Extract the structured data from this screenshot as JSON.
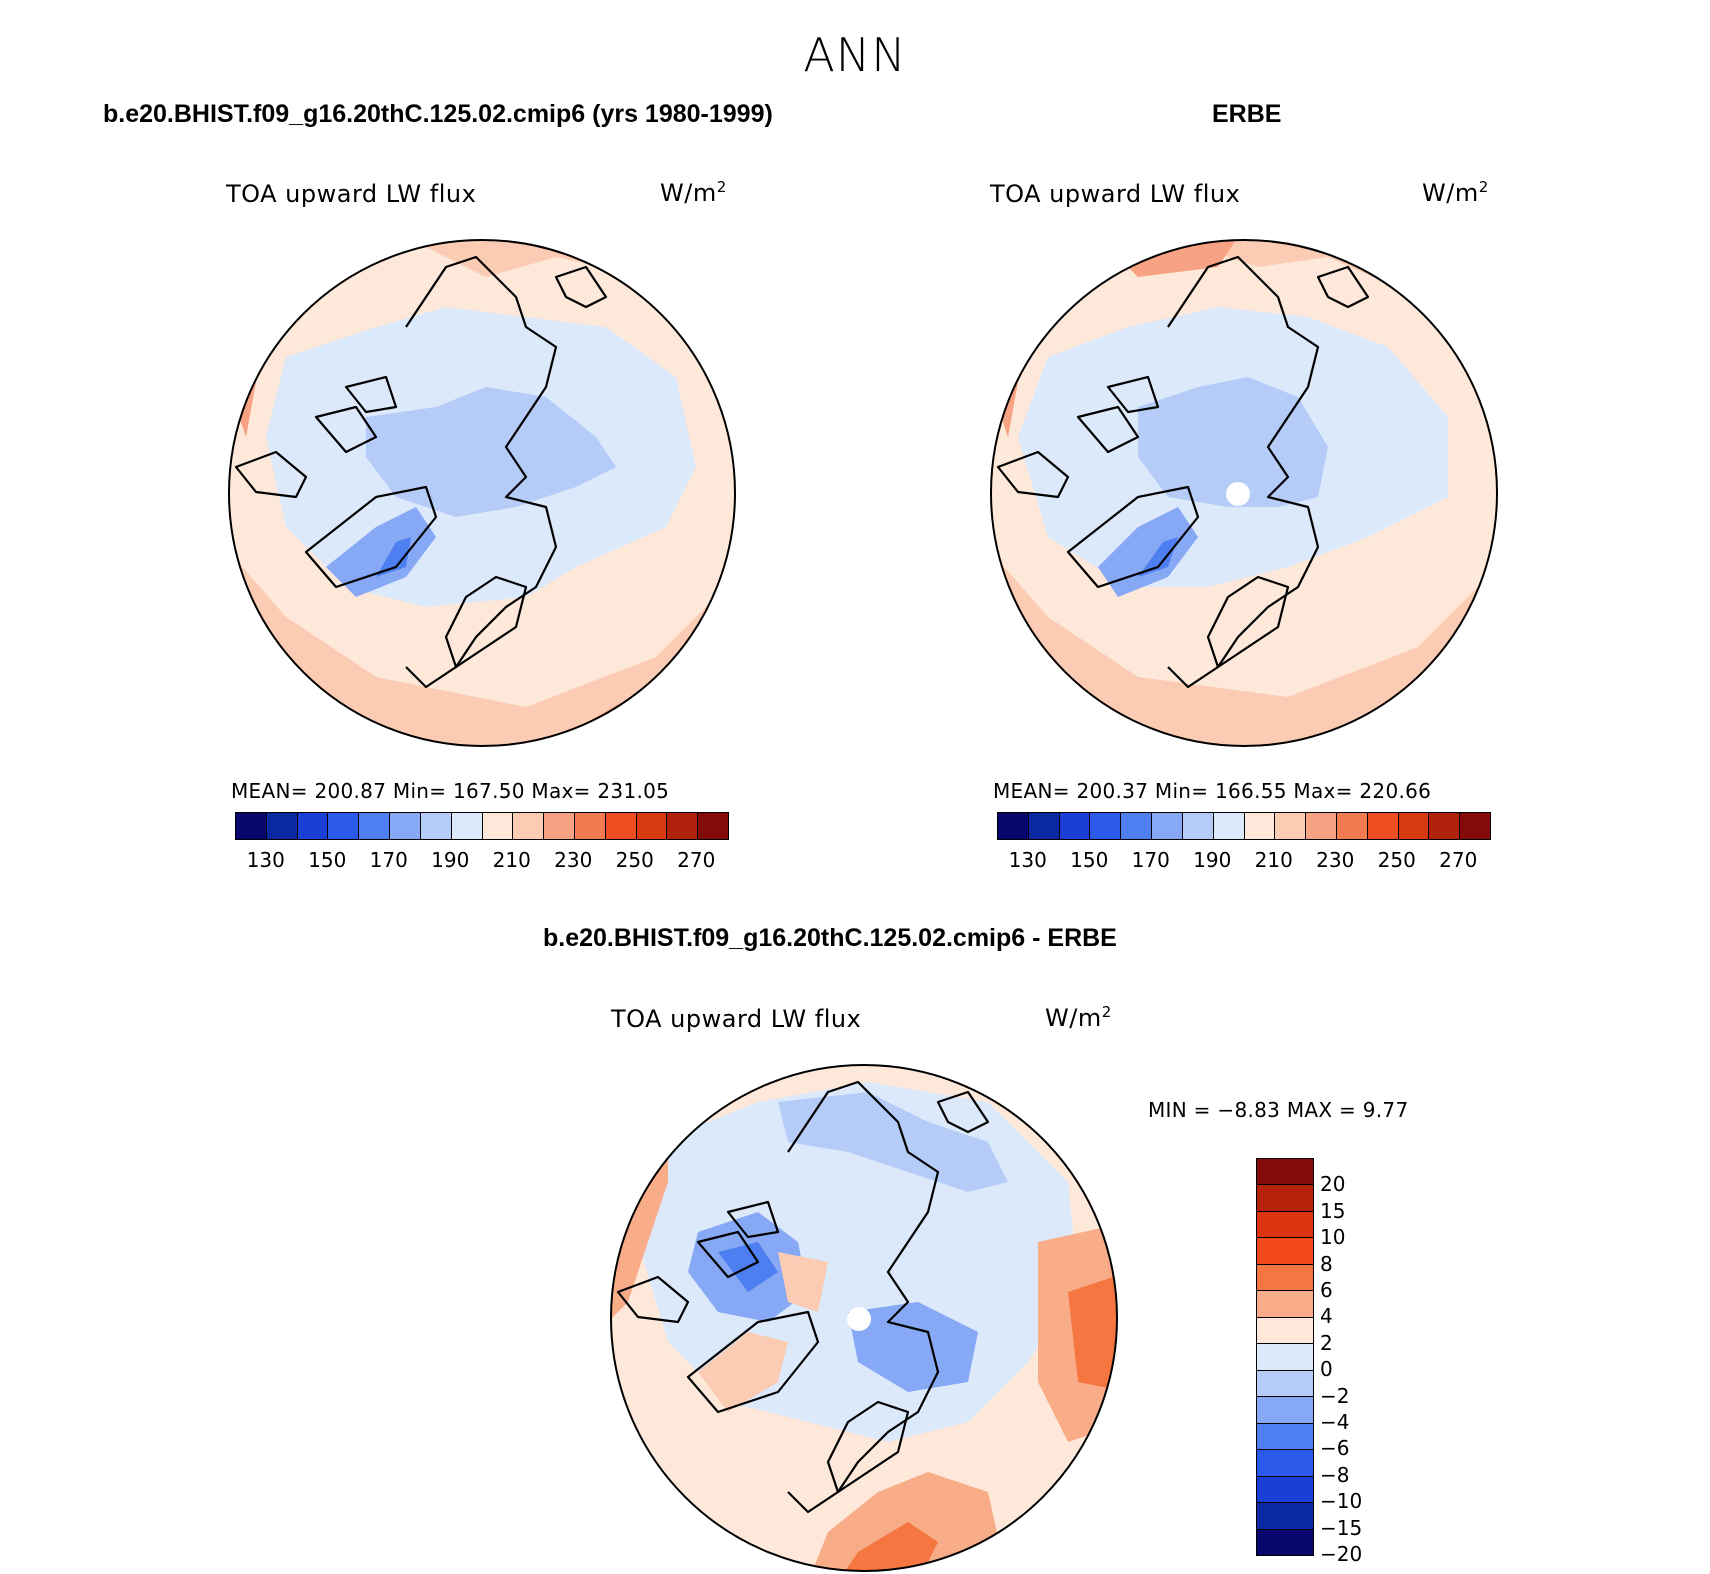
{
  "figure": {
    "title": "ANN",
    "panel_a": {
      "title": "b.e20.BHIST.f09_g16.20thC.125.02.cmip6 (yrs 1980-1999)",
      "variable": "TOA upward LW flux",
      "units_base": "W/m",
      "units_exp": "2",
      "stats": "MEAN= 200.87   Min= 167.50   Max= 231.05",
      "mean": 200.87,
      "min": 167.5,
      "max": 231.05
    },
    "panel_b": {
      "title": "ERBE",
      "variable": "TOA upward LW flux",
      "units_base": "W/m",
      "units_exp": "2",
      "stats": "MEAN= 200.37   Min= 166.55   Max= 220.66",
      "mean": 200.37,
      "min": 166.55,
      "max": 220.66
    },
    "panel_c": {
      "title": "b.e20.BHIST.f09_g16.20thC.125.02.cmip6 - ERBE",
      "variable": "TOA upward LW flux",
      "units_base": "W/m",
      "units_exp": "2",
      "stats": "MIN =   −8.83 MAX =    9.77",
      "min": -8.83,
      "max": 9.77
    }
  },
  "abs_colorbar": {
    "colors": [
      "#08076e",
      "#0a28a0",
      "#1a3fd6",
      "#2b5aeb",
      "#4d7ff0",
      "#86a8f5",
      "#b5cbf8",
      "#dce9fb",
      "#fde8d9",
      "#fbccb3",
      "#f7a282",
      "#f47a52",
      "#ef4e22",
      "#d63a10",
      "#b0220c",
      "#850b08"
    ],
    "ticks": [
      "130",
      "150",
      "170",
      "190",
      "210",
      "230",
      "250",
      "270"
    ]
  },
  "diff_colorbar": {
    "colors": [
      "#850b08",
      "#b5230c",
      "#dc3410",
      "#f24a1a",
      "#f57640",
      "#f9ac88",
      "#fde8d9",
      "#dce9fb",
      "#b5cbf8",
      "#86a8f5",
      "#4d7ff0",
      "#2b5aeb",
      "#1a3fd6",
      "#0a28a0",
      "#08076e"
    ],
    "ticks": [
      "20",
      "15",
      "10",
      "8",
      "6",
      "4",
      "2",
      "0",
      "−2",
      "−4",
      "−6",
      "−8",
      "−10",
      "−15",
      "−20"
    ]
  },
  "map_colors": {
    "warm3": "#f7a282",
    "warm2": "#fbccb3",
    "warm1": "#fde8d9",
    "cool1": "#dce9fb",
    "cool2": "#b5cbf8",
    "cool3": "#86a8f5",
    "cool4": "#4d7ff0",
    "cool5": "#2b5aeb",
    "orange": "#f57640",
    "red": "#ef4e22"
  }
}
